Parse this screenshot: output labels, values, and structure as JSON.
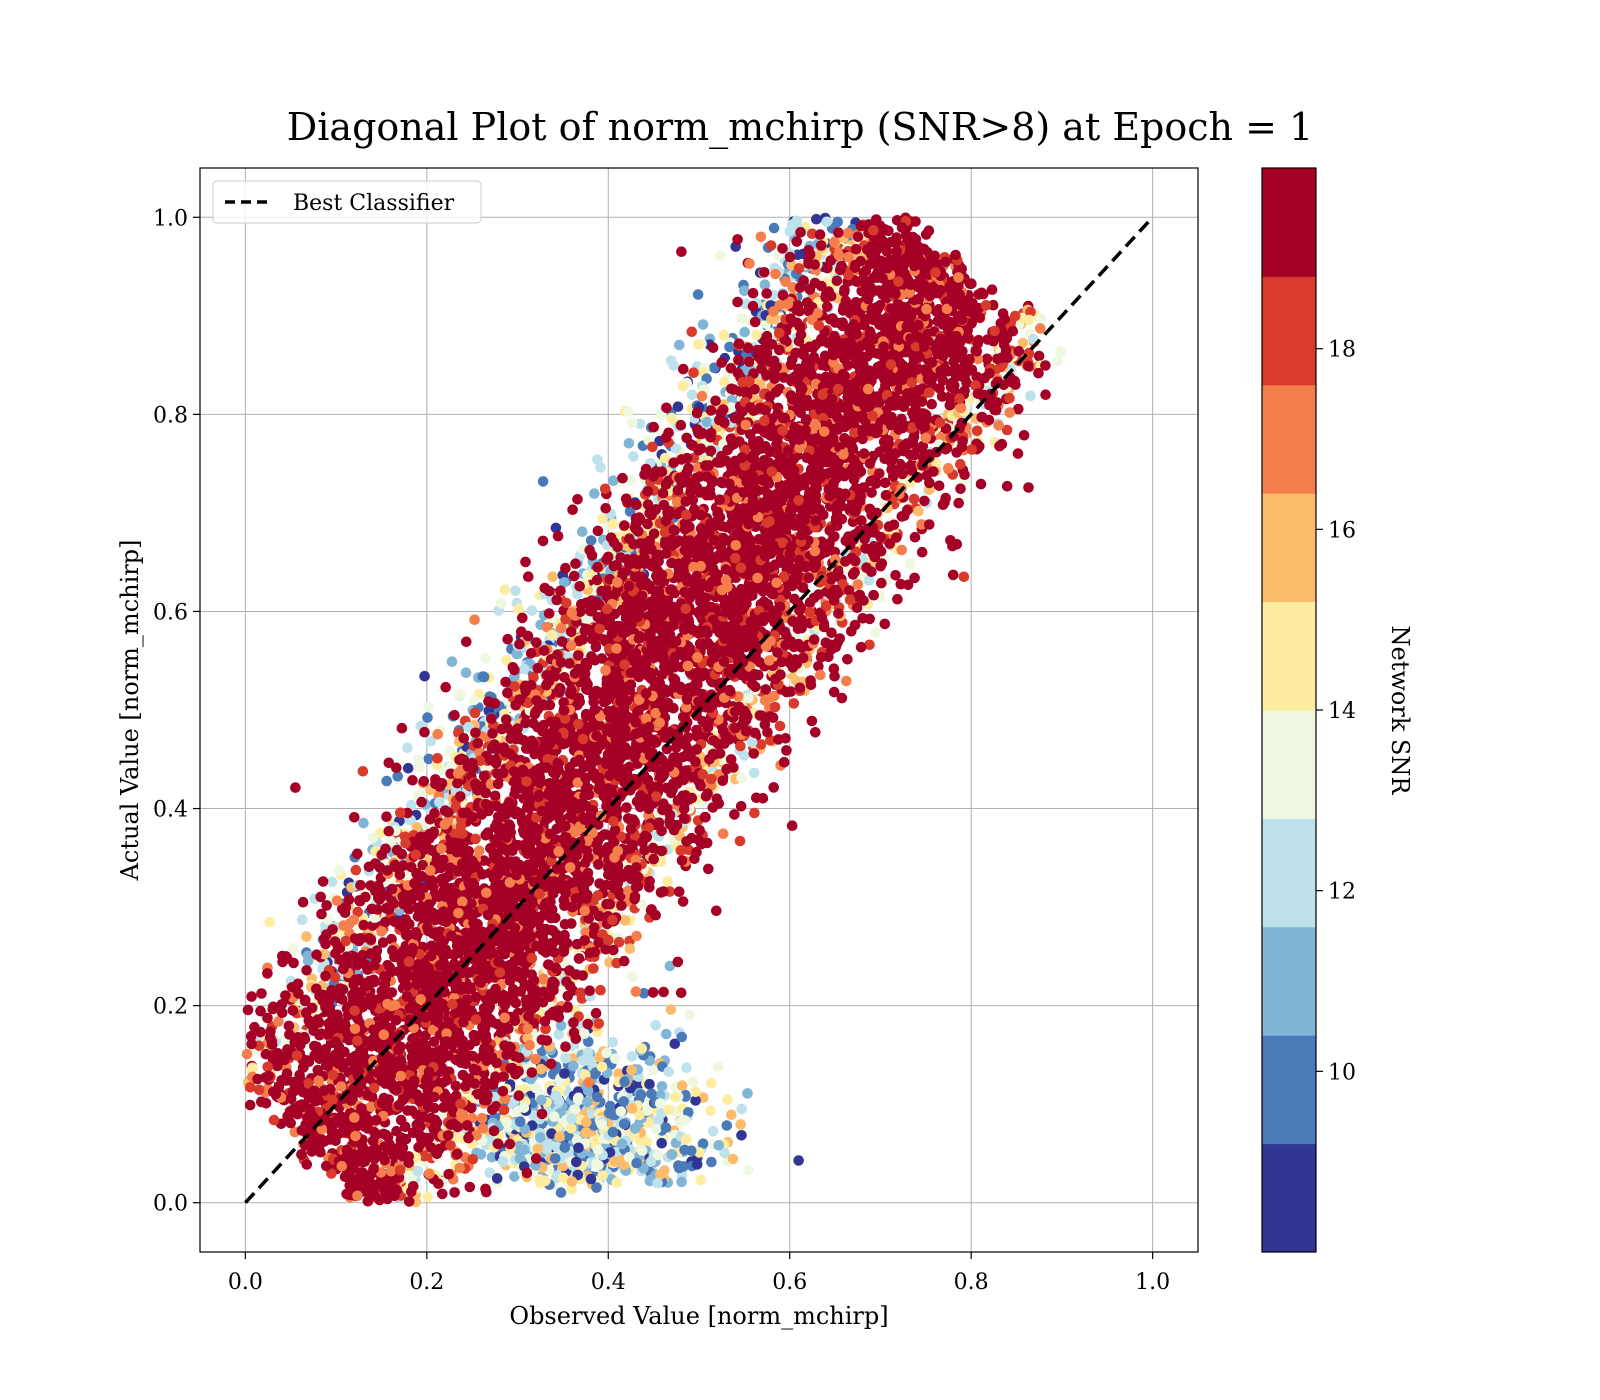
{
  "chart_data": {
    "type": "scatter",
    "title": "Diagonal Plot of norm_mchirp (SNR>8) at Epoch = 1",
    "xlabel": "Observed Value [norm_mchirp]",
    "ylabel": "Actual Value [norm_mchirp]",
    "xlim": [
      -0.05,
      1.05
    ],
    "ylim": [
      -0.05,
      1.05
    ],
    "xticks": [
      "0.0",
      "0.2",
      "0.4",
      "0.6",
      "0.8",
      "1.0"
    ],
    "yticks": [
      "0.0",
      "0.2",
      "0.4",
      "0.6",
      "0.8",
      "1.0"
    ],
    "grid": true,
    "legend": {
      "position": "upper-left",
      "entries": [
        {
          "label": "Best Classifier",
          "style": "dashed",
          "color": "#000000"
        }
      ]
    },
    "reference_line": {
      "name": "Best Classifier",
      "x": [
        0,
        1
      ],
      "y": [
        0,
        1
      ],
      "style": "dashed",
      "color": "#000000"
    },
    "colorbar": {
      "label": "Network SNR",
      "range": [
        8,
        20
      ],
      "ticks": [
        "10",
        "12",
        "14",
        "16",
        "18"
      ],
      "colors": [
        "#313695",
        "#4a7ab8",
        "#80b5d6",
        "#bde2ec",
        "#eef7e0",
        "#feeda0",
        "#fdbc6c",
        "#f47e4c",
        "#d83a2c",
        "#a50026"
      ]
    },
    "scatter_regions": [
      {
        "description": "main high-SNR band along diagonal",
        "snr": 19.5,
        "center_line": [
          [
            0.1,
            0.1
          ],
          [
            0.75,
            0.8
          ]
        ],
        "half_width_y": 0.18
      },
      {
        "description": "low-SNR cluster below diagonal",
        "snr": 11,
        "x_range": [
          0.25,
          0.5
        ],
        "y_range": [
          0.0,
          0.2
        ]
      },
      {
        "description": "low-SNR points above the band",
        "snr": 10,
        "x_range": [
          0.2,
          0.6
        ],
        "y_range": [
          0.3,
          1.0
        ]
      }
    ]
  }
}
